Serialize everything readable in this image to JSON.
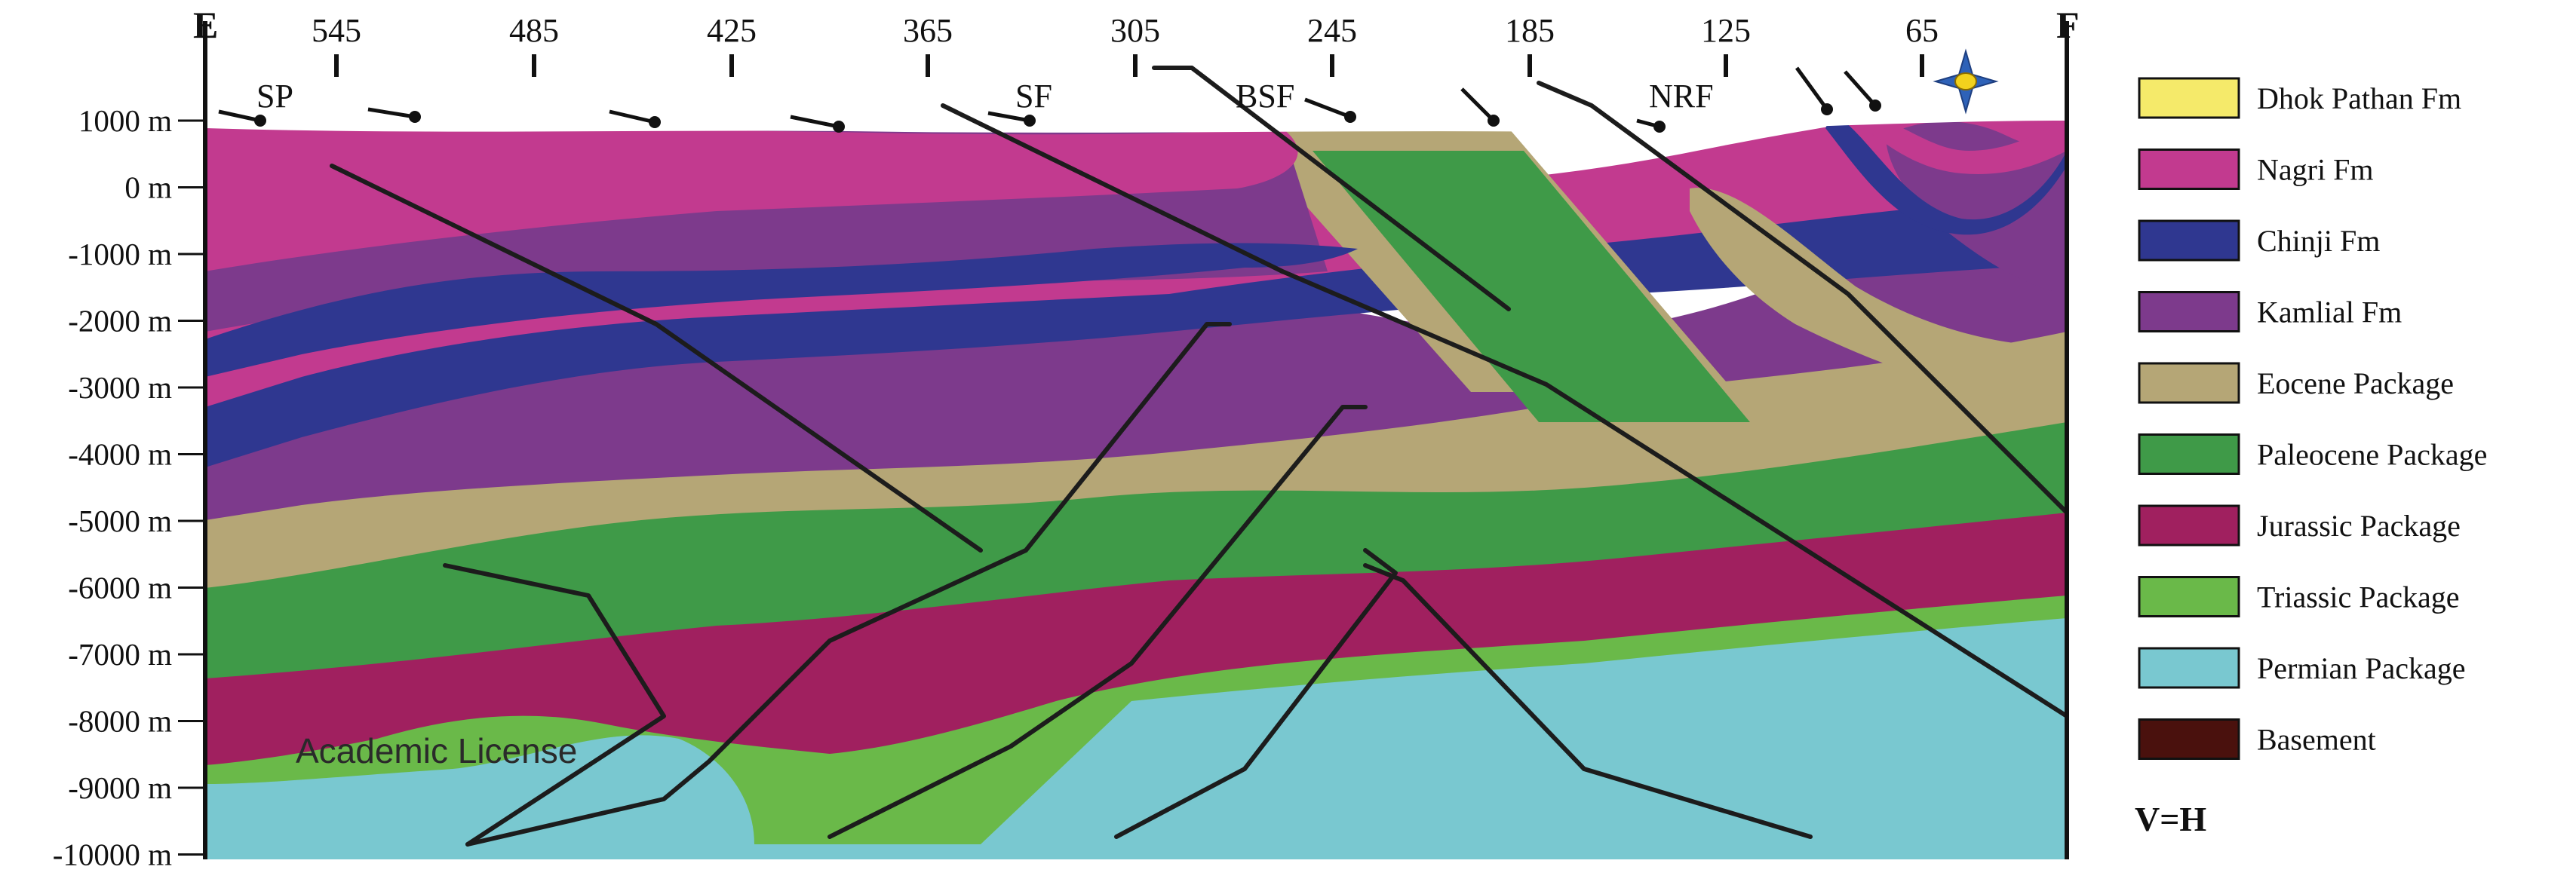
{
  "section_ends": {
    "left": "E",
    "right": "F"
  },
  "distance_ticks": [
    "545",
    "485",
    "425",
    "365",
    "305",
    "245",
    "185",
    "125",
    "65"
  ],
  "depth_labels": [
    "1000 m",
    "0 m",
    "-1000 m",
    "-2000 m",
    "-3000 m",
    "-4000 m",
    "-5000 m",
    "-6000 m",
    "-7000 m",
    "-8000 m",
    "-9000 m",
    "-10000 m"
  ],
  "fault_labels": [
    "SP",
    "SF",
    "BSF",
    "NRF"
  ],
  "watermark": "Academic License",
  "legend": [
    {
      "label": "Dhok Pathan Fm",
      "color": "#f5ea6a"
    },
    {
      "label": "Nagri Fm",
      "color": "#c23a8f"
    },
    {
      "label": "Chinji Fm",
      "color": "#2f3790"
    },
    {
      "label": "Kamlial Fm",
      "color": "#7d3a8c"
    },
    {
      "label": "Eocene Package",
      "color": "#b5a676"
    },
    {
      "label": "Paleocene Package",
      "color": "#3f9a48"
    },
    {
      "label": "Jurassic Package",
      "color": "#a0205f"
    },
    {
      "label": "Triassic Package",
      "color": "#6ab949"
    },
    {
      "label": "Permian Package",
      "color": "#79c8d0"
    },
    {
      "label": "Basement",
      "color": "#4a110d"
    }
  ],
  "scale_note": "V=H",
  "compass_icon": "north-arrow-star-icon"
}
